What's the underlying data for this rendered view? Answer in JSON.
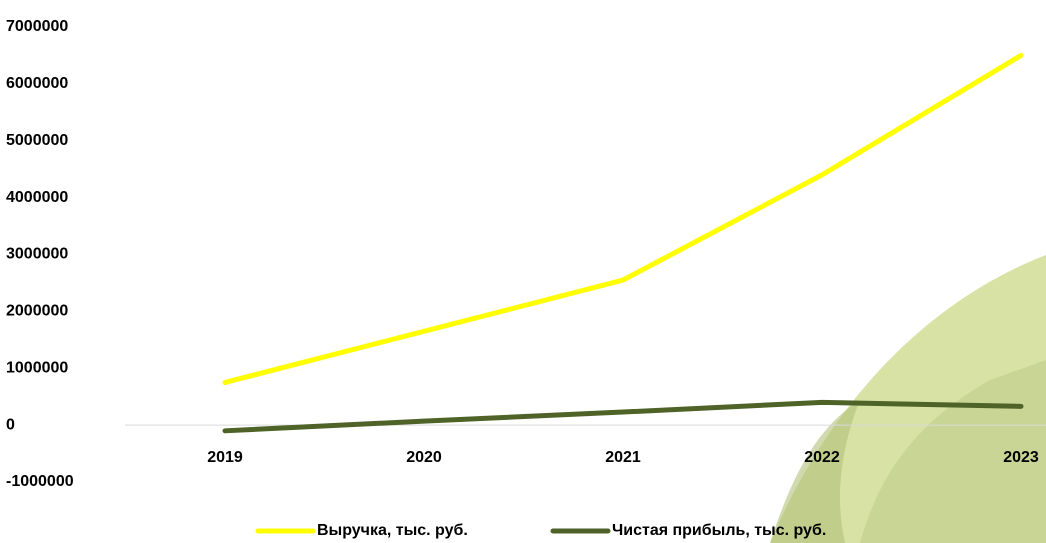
{
  "chart_data": {
    "type": "line",
    "categories": [
      "2019",
      "2020",
      "2021",
      "2022",
      "2023"
    ],
    "series": [
      {
        "name": "Выручка, тыс. руб.",
        "color": "#ffff00",
        "values": [
          750000,
          1650000,
          2550000,
          4400000,
          6500000
        ]
      },
      {
        "name": "Чистая прибыль, тыс. руб.",
        "color": "#4f6228",
        "values": [
          -100000,
          70000,
          230000,
          400000,
          330000
        ]
      }
    ],
    "ylim": [
      -1000000,
      7000000
    ],
    "yticks": [
      -1000000,
      0,
      1000000,
      2000000,
      3000000,
      4000000,
      5000000,
      6000000,
      7000000
    ],
    "legend": "bottom"
  }
}
